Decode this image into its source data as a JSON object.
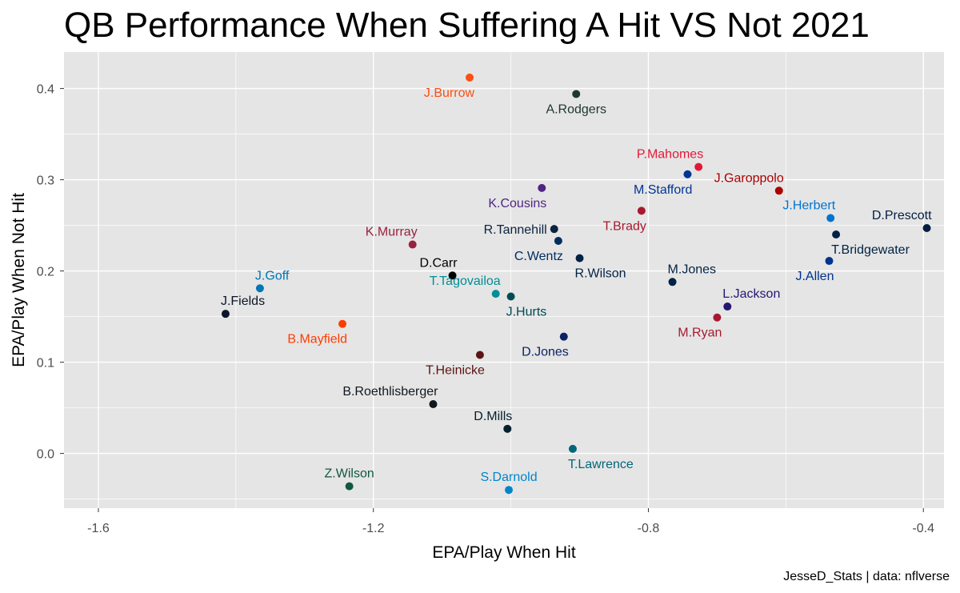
{
  "chart_data": {
    "type": "scatter",
    "title": "QB Performance When Suffering A Hit VS Not 2021",
    "xlabel": "EPA/Play When Hit",
    "ylabel": "EPA/Play When Not Hit",
    "caption": "JesseD_Stats | data: nflverse",
    "xlim": [
      -1.65,
      -0.37
    ],
    "ylim": [
      -0.06,
      0.44
    ],
    "x_ticks": [
      -1.6,
      -1.2,
      -0.8,
      -0.4
    ],
    "x_tick_labels": [
      "-1.6",
      "-1.2",
      "-0.8",
      "-0.4"
    ],
    "y_ticks": [
      0.0,
      0.1,
      0.2,
      0.3,
      0.4
    ],
    "y_tick_labels": [
      "0.0",
      "0.1",
      "0.2",
      "0.3",
      "0.4"
    ],
    "grid": true,
    "background": "#e5e5e5",
    "grid_color": "#ffffff",
    "points": [
      {
        "label": "J.Burrow",
        "x": -1.06,
        "y": 0.412,
        "color": "#fb4f14",
        "label_pos": "below-left"
      },
      {
        "label": "A.Rodgers",
        "x": -0.905,
        "y": 0.394,
        "color": "#203731",
        "label_pos": "below"
      },
      {
        "label": "P.Mahomes",
        "x": -0.727,
        "y": 0.314,
        "color": "#e31837",
        "label_pos": "above-left"
      },
      {
        "label": "M.Stafford",
        "x": -0.743,
        "y": 0.306,
        "color": "#003594",
        "label_pos": "below-left"
      },
      {
        "label": "J.Garoppolo",
        "x": -0.61,
        "y": 0.288,
        "color": "#aa0000",
        "label_pos": "above-left"
      },
      {
        "label": "K.Cousins",
        "x": -0.955,
        "y": 0.291,
        "color": "#4f2683",
        "label_pos": "below-left"
      },
      {
        "label": "T.Brady",
        "x": -0.81,
        "y": 0.266,
        "color": "#a71930",
        "label_pos": "below-left"
      },
      {
        "label": "J.Herbert",
        "x": -0.535,
        "y": 0.258,
        "color": "#0073cf",
        "label_pos": "above-left"
      },
      {
        "label": "D.Prescott",
        "x": -0.395,
        "y": 0.247,
        "color": "#041e42",
        "label_pos": "above-left"
      },
      {
        "label": "T.Bridgewater",
        "x": -0.527,
        "y": 0.24,
        "color": "#002244",
        "label_pos": "below-right"
      },
      {
        "label": "R.Tannehill",
        "x": -0.937,
        "y": 0.246,
        "color": "#0c2340",
        "label_pos": "left"
      },
      {
        "label": "C.Wentz",
        "x": -0.931,
        "y": 0.233,
        "color": "#002c5f",
        "label_pos": "below-left"
      },
      {
        "label": "K.Murray",
        "x": -1.143,
        "y": 0.229,
        "color": "#97233f",
        "label_pos": "above-left"
      },
      {
        "label": "R.Wilson",
        "x": -0.9,
        "y": 0.214,
        "color": "#002244",
        "label_pos": "below-right"
      },
      {
        "label": "J.Allen",
        "x": -0.537,
        "y": 0.211,
        "color": "#00338d",
        "label_pos": "below-left"
      },
      {
        "label": "D.Carr",
        "x": -1.085,
        "y": 0.195,
        "color": "#000000",
        "label_pos": "above-left"
      },
      {
        "label": "M.Jones",
        "x": -0.765,
        "y": 0.188,
        "color": "#002244",
        "label_pos": "above-right"
      },
      {
        "label": "J.Goff",
        "x": -1.365,
        "y": 0.181,
        "color": "#0076b6",
        "label_pos": "above-right"
      },
      {
        "label": "T.Tagovailoa",
        "x": -1.022,
        "y": 0.175,
        "color": "#008e97",
        "label_pos": "above-left"
      },
      {
        "label": "J.Hurts",
        "x": -1.0,
        "y": 0.172,
        "color": "#004c54",
        "label_pos": "below-right"
      },
      {
        "label": "L.Jackson",
        "x": -0.685,
        "y": 0.161,
        "color": "#241773",
        "label_pos": "above-right"
      },
      {
        "label": "J.Fields",
        "x": -1.415,
        "y": 0.153,
        "color": "#0b162a",
        "label_pos": "above-right"
      },
      {
        "label": "M.Ryan",
        "x": -0.7,
        "y": 0.149,
        "color": "#a71930",
        "label_pos": "below-left"
      },
      {
        "label": "B.Mayfield",
        "x": -1.245,
        "y": 0.142,
        "color": "#ff3c00",
        "label_pos": "below-left"
      },
      {
        "label": "D.Jones",
        "x": -0.923,
        "y": 0.128,
        "color": "#0b2265",
        "label_pos": "below-left"
      },
      {
        "label": "T.Heinicke",
        "x": -1.045,
        "y": 0.108,
        "color": "#5a1414",
        "label_pos": "below-left"
      },
      {
        "label": "B.Roethlisberger",
        "x": -1.113,
        "y": 0.054,
        "color": "#101820",
        "label_pos": "above-left"
      },
      {
        "label": "D.Mills",
        "x": -1.005,
        "y": 0.027,
        "color": "#03202f",
        "label_pos": "above-left"
      },
      {
        "label": "T.Lawrence",
        "x": -0.91,
        "y": 0.005,
        "color": "#006778",
        "label_pos": "below-right"
      },
      {
        "label": "Z.Wilson",
        "x": -1.235,
        "y": -0.036,
        "color": "#125740",
        "label_pos": "above"
      },
      {
        "label": "S.Darnold",
        "x": -1.003,
        "y": -0.04,
        "color": "#0085ca",
        "label_pos": "above"
      }
    ]
  }
}
